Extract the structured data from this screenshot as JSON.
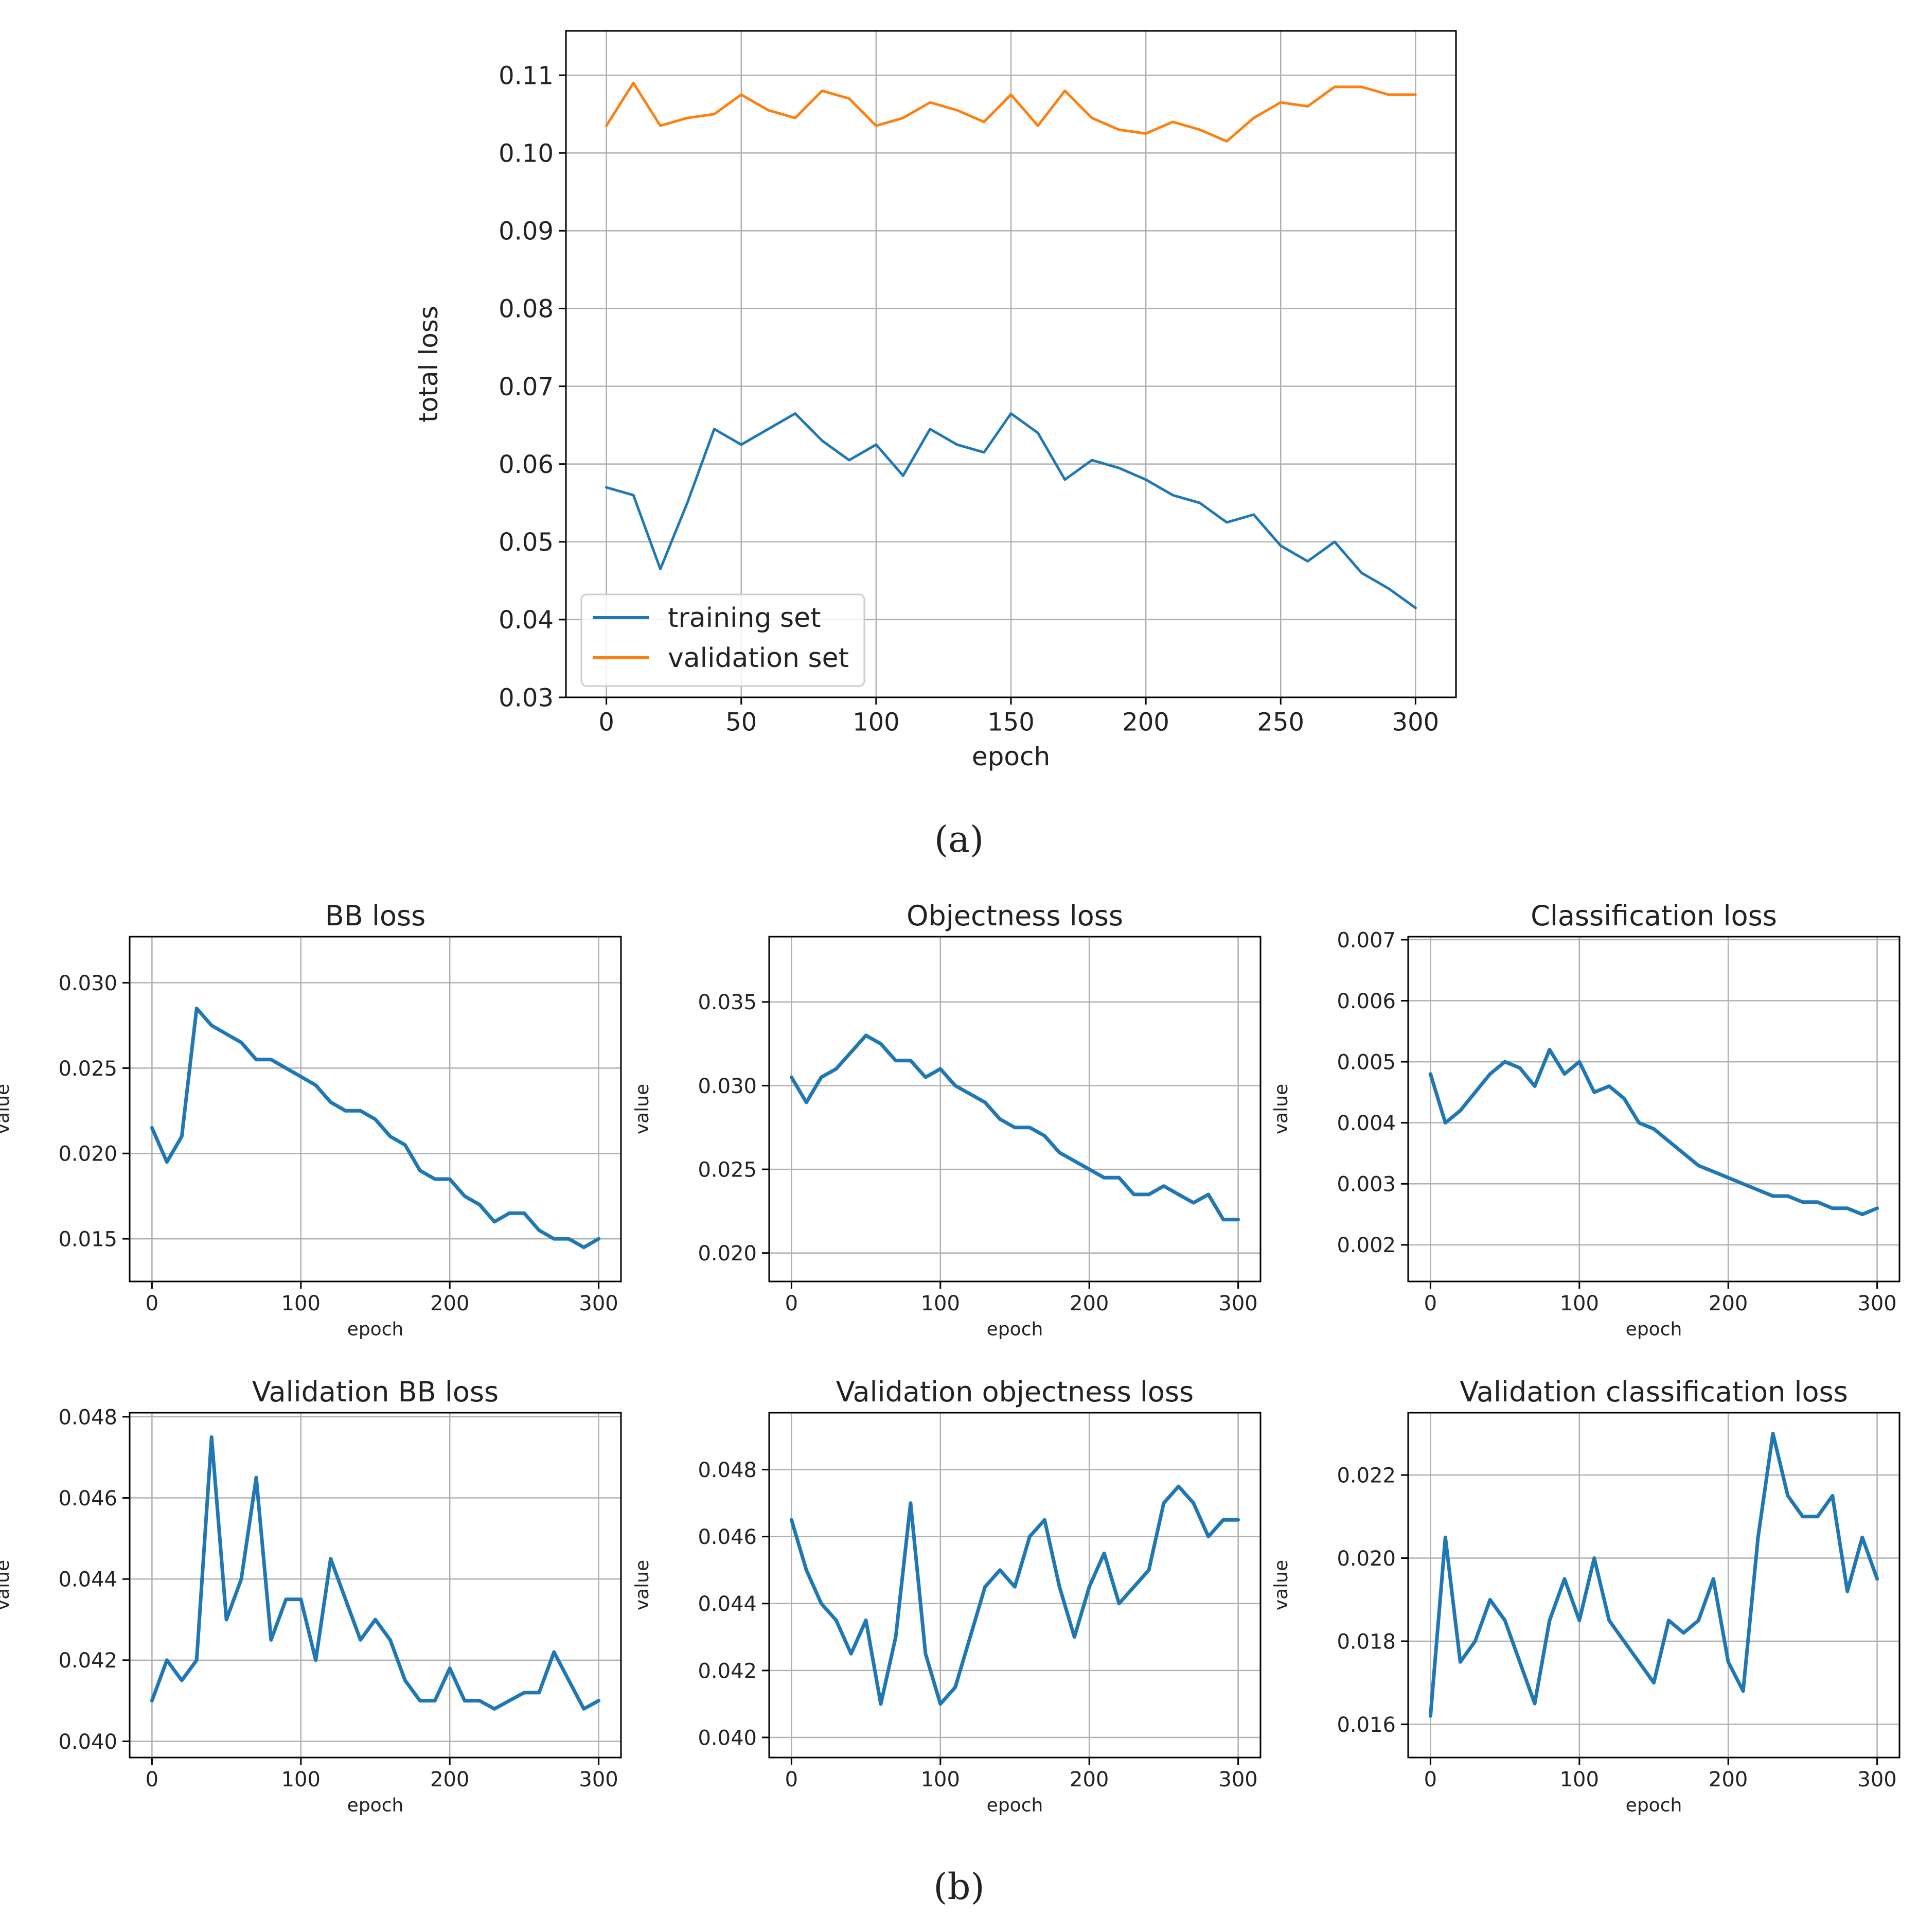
{
  "figure": {
    "caption_a": "(a)",
    "caption_b": "(b)"
  },
  "chart_data": [
    {
      "id": "a",
      "type": "line",
      "title": "",
      "xlabel": "epoch",
      "ylabel": "total loss",
      "xlim": [
        -15,
        315
      ],
      "ylim": [
        0.03,
        0.1157
      ],
      "xticks": [
        0,
        50,
        100,
        150,
        200,
        250,
        300
      ],
      "yticks": [
        0.03,
        0.04,
        0.05,
        0.06,
        0.07,
        0.08,
        0.09,
        0.1,
        0.11
      ],
      "ytick_labels": [
        "0.03",
        "0.04",
        "0.05",
        "0.06",
        "0.07",
        "0.08",
        "0.09",
        "0.10",
        "0.11"
      ],
      "grid": true,
      "legend_position": "lower-left",
      "x_step": 10,
      "series": [
        {
          "name": "training set",
          "color": "#1f77b4",
          "values": [
            0.057,
            0.056,
            0.0465,
            0.055,
            0.0645,
            0.0625,
            0.0645,
            0.0665,
            0.063,
            0.0605,
            0.0625,
            0.0585,
            0.0645,
            0.0625,
            0.0615,
            0.0665,
            0.064,
            0.058,
            0.0605,
            0.0595,
            0.058,
            0.056,
            0.055,
            0.0525,
            0.0535,
            0.0495,
            0.0475,
            0.05,
            0.046,
            0.044,
            0.0415
          ]
        },
        {
          "name": "validation set",
          "color": "#ff7f0e",
          "values": [
            0.1035,
            0.109,
            0.1035,
            0.1045,
            0.105,
            0.1075,
            0.1055,
            0.1045,
            0.108,
            0.107,
            0.1035,
            0.1045,
            0.1065,
            0.1055,
            0.104,
            0.1075,
            0.1035,
            0.108,
            0.1045,
            0.103,
            0.1025,
            0.104,
            0.103,
            0.1015,
            0.1045,
            0.1065,
            0.106,
            0.1085,
            0.1085,
            0.1075,
            0.1075
          ]
        }
      ]
    },
    {
      "id": "b1",
      "type": "line",
      "title": "BB loss",
      "xlabel": "epoch",
      "ylabel": "value",
      "xlim": [
        -15,
        315
      ],
      "ylim": [
        0.0125,
        0.0327
      ],
      "xticks": [
        0,
        100,
        200,
        300
      ],
      "yticks": [
        0.015,
        0.02,
        0.025,
        0.03
      ],
      "ytick_labels": [
        "0.015",
        "0.020",
        "0.025",
        "0.030"
      ],
      "grid": true,
      "x_step": 10,
      "series": [
        {
          "name": "BB loss",
          "color": "#1f77b4",
          "values": [
            0.0215,
            0.0195,
            0.021,
            0.0285,
            0.0275,
            0.027,
            0.0265,
            0.0255,
            0.0255,
            0.025,
            0.0245,
            0.024,
            0.023,
            0.0225,
            0.0225,
            0.022,
            0.021,
            0.0205,
            0.019,
            0.0185,
            0.0185,
            0.0175,
            0.017,
            0.016,
            0.0165,
            0.0165,
            0.0155,
            0.015,
            0.015,
            0.0145,
            0.015
          ]
        }
      ]
    },
    {
      "id": "b2",
      "type": "line",
      "title": "Objectness loss",
      "xlabel": "epoch",
      "ylabel": "value",
      "xlim": [
        -15,
        315
      ],
      "ylim": [
        0.0183,
        0.0389
      ],
      "xticks": [
        0,
        100,
        200,
        300
      ],
      "yticks": [
        0.02,
        0.025,
        0.03,
        0.035
      ],
      "ytick_labels": [
        "0.020",
        "0.025",
        "0.030",
        "0.035"
      ],
      "grid": true,
      "x_step": 10,
      "series": [
        {
          "name": "Objectness loss",
          "color": "#1f77b4",
          "values": [
            0.0305,
            0.029,
            0.0305,
            0.031,
            0.032,
            0.033,
            0.0325,
            0.0315,
            0.0315,
            0.0305,
            0.031,
            0.03,
            0.0295,
            0.029,
            0.028,
            0.0275,
            0.0275,
            0.027,
            0.026,
            0.0255,
            0.025,
            0.0245,
            0.0245,
            0.0235,
            0.0235,
            0.024,
            0.0235,
            0.023,
            0.0235,
            0.022,
            0.022
          ]
        }
      ]
    },
    {
      "id": "b3",
      "type": "line",
      "title": "Classification loss",
      "xlabel": "epoch",
      "ylabel": "value",
      "xlim": [
        -15,
        315
      ],
      "ylim": [
        0.0014,
        0.00705
      ],
      "xticks": [
        0,
        100,
        200,
        300
      ],
      "yticks": [
        0.002,
        0.003,
        0.004,
        0.005,
        0.006,
        0.007
      ],
      "ytick_labels": [
        "0.002",
        "0.003",
        "0.004",
        "0.005",
        "0.006",
        "0.007"
      ],
      "grid": true,
      "x_step": 10,
      "series": [
        {
          "name": "Classification loss",
          "color": "#1f77b4",
          "values": [
            0.0048,
            0.004,
            0.0042,
            0.0045,
            0.0048,
            0.005,
            0.0049,
            0.0046,
            0.0052,
            0.0048,
            0.005,
            0.0045,
            0.0046,
            0.0044,
            0.004,
            0.0039,
            0.0037,
            0.0035,
            0.0033,
            0.0032,
            0.0031,
            0.003,
            0.0029,
            0.0028,
            0.0028,
            0.0027,
            0.0027,
            0.0026,
            0.0026,
            0.0025,
            0.0026
          ]
        }
      ]
    },
    {
      "id": "b4",
      "type": "line",
      "title": "Validation BB loss",
      "xlabel": "epoch",
      "ylabel": "value",
      "xlim": [
        -15,
        315
      ],
      "ylim": [
        0.0396,
        0.0481
      ],
      "xticks": [
        0,
        100,
        200,
        300
      ],
      "yticks": [
        0.04,
        0.042,
        0.044,
        0.046,
        0.048
      ],
      "ytick_labels": [
        "0.040",
        "0.042",
        "0.044",
        "0.046",
        "0.048"
      ],
      "grid": true,
      "x_step": 10,
      "series": [
        {
          "name": "Validation BB loss",
          "color": "#1f77b4",
          "values": [
            0.041,
            0.042,
            0.0415,
            0.042,
            0.0475,
            0.043,
            0.044,
            0.0465,
            0.0425,
            0.0435,
            0.0435,
            0.042,
            0.0445,
            0.0435,
            0.0425,
            0.043,
            0.0425,
            0.0415,
            0.041,
            0.041,
            0.0418,
            0.041,
            0.041,
            0.0408,
            0.041,
            0.0412,
            0.0412,
            0.0422,
            0.0415,
            0.0408,
            0.041
          ]
        }
      ]
    },
    {
      "id": "b5",
      "type": "line",
      "title": "Validation objectness loss",
      "xlabel": "epoch",
      "ylabel": "value",
      "xlim": [
        -15,
        315
      ],
      "ylim": [
        0.0394,
        0.0497
      ],
      "xticks": [
        0,
        100,
        200,
        300
      ],
      "yticks": [
        0.04,
        0.042,
        0.044,
        0.046,
        0.048
      ],
      "ytick_labels": [
        "0.040",
        "0.042",
        "0.044",
        "0.046",
        "0.048"
      ],
      "grid": true,
      "x_step": 10,
      "series": [
        {
          "name": "Validation objectness loss",
          "color": "#1f77b4",
          "values": [
            0.0465,
            0.045,
            0.044,
            0.0435,
            0.0425,
            0.0435,
            0.041,
            0.043,
            0.047,
            0.0425,
            0.041,
            0.0415,
            0.043,
            0.0445,
            0.045,
            0.0445,
            0.046,
            0.0465,
            0.0445,
            0.043,
            0.0445,
            0.0455,
            0.044,
            0.0445,
            0.045,
            0.047,
            0.0475,
            0.047,
            0.046,
            0.0465,
            0.0465
          ]
        }
      ]
    },
    {
      "id": "b6",
      "type": "line",
      "title": "Validation classification loss",
      "xlabel": "epoch",
      "ylabel": "value",
      "xlim": [
        -15,
        315
      ],
      "ylim": [
        0.0152,
        0.0235
      ],
      "xticks": [
        0,
        100,
        200,
        300
      ],
      "yticks": [
        0.016,
        0.018,
        0.02,
        0.022
      ],
      "ytick_labels": [
        "0.016",
        "0.018",
        "0.020",
        "0.022"
      ],
      "grid": true,
      "x_step": 10,
      "series": [
        {
          "name": "Validation classification loss",
          "color": "#1f77b4",
          "values": [
            0.0162,
            0.0205,
            0.0175,
            0.018,
            0.019,
            0.0185,
            0.0175,
            0.0165,
            0.0185,
            0.0195,
            0.0185,
            0.02,
            0.0185,
            0.018,
            0.0175,
            0.017,
            0.0185,
            0.0182,
            0.0185,
            0.0195,
            0.0175,
            0.0168,
            0.0205,
            0.023,
            0.0215,
            0.021,
            0.021,
            0.0215,
            0.0192,
            0.0205,
            0.0195
          ]
        }
      ]
    }
  ]
}
